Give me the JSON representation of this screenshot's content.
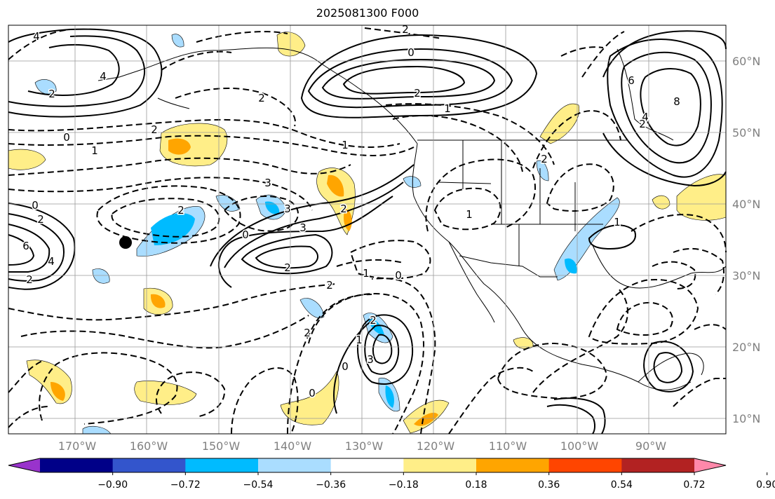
{
  "title": "2025081300 F000",
  "map": {
    "projection": "plate-carree",
    "lon_range": [
      -180,
      -80
    ],
    "lat_range": [
      7.5,
      65.5
    ],
    "gridlines": true,
    "lat_labels": [
      "60°N",
      "50°N",
      "40°N",
      "30°N",
      "20°N",
      "10°N"
    ],
    "lon_labels": [
      "170°W",
      "160°W",
      "150°W",
      "140°W",
      "130°W",
      "120°W",
      "110°W",
      "100°W",
      "90°W"
    ],
    "marker": {
      "label": "point-marker",
      "lon": -164,
      "lat": 34.5
    }
  },
  "colorbar": {
    "orientation": "horizontal",
    "colors": [
      "#9933cc",
      "#000088",
      "#3355cc",
      "#00bbff",
      "#aaddff",
      "#ffffff",
      "#ffee88",
      "#ffa500",
      "#ff4500",
      "#b22222",
      "#ff88aa"
    ],
    "ticks": [
      "−0.90",
      "−0.72",
      "−0.54",
      "−0.36",
      "−0.18",
      "0.18",
      "0.36",
      "0.54",
      "0.72",
      "0.90"
    ]
  },
  "contour_labels": [
    "4",
    "2",
    "0",
    "1",
    "2",
    "3",
    "4",
    "2",
    "0",
    "2",
    "3",
    "2",
    "0",
    "1",
    "2",
    "3",
    "2",
    "6",
    "4",
    "2",
    "2",
    "3",
    "1",
    "0",
    "2",
    "1",
    "0",
    "2",
    "0",
    "2",
    "1",
    "0",
    "2",
    "1",
    "6",
    "8",
    "4",
    "2",
    "1",
    "2"
  ],
  "colors": {
    "positive_fill": "#ffee88",
    "strong_positive": "#ffa500",
    "negative_fill": "#aaddff",
    "strong_negative": "#00bbff"
  }
}
